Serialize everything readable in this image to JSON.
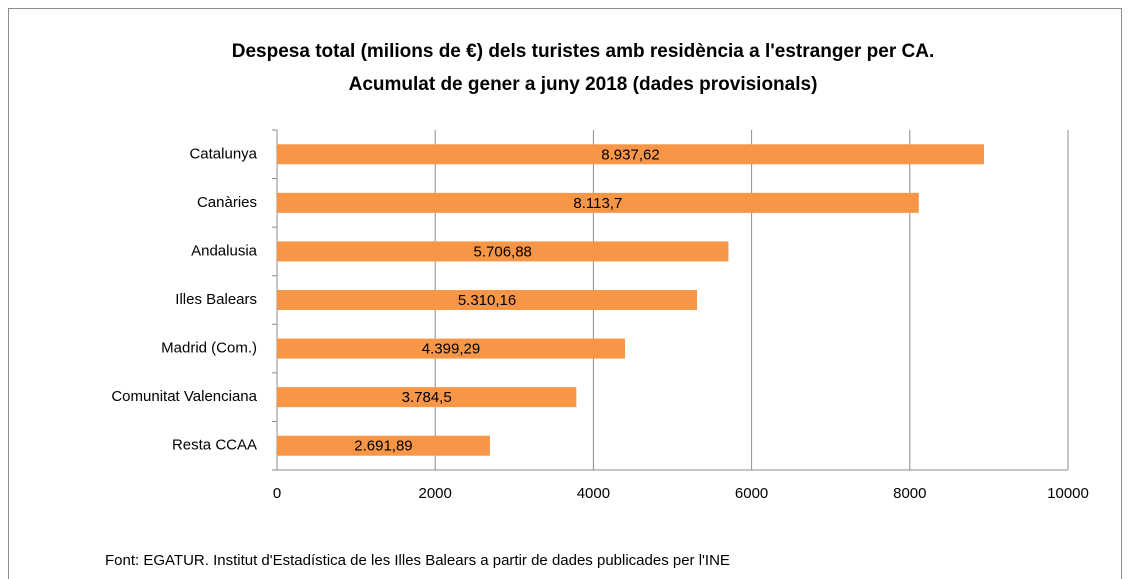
{
  "chart_data": {
    "type": "barh",
    "title": [
      "Despesa total (milions de €) dels turistes amb residència a l'estranger per CA.",
      "Acumulat de gener a juny 2018 (dades provisionals)"
    ],
    "categories": [
      "Catalunya",
      "Canàries",
      "Andalusia",
      "Illes Balears",
      "Madrid (Com.)",
      "Comunitat Valenciana",
      "Resta CCAA"
    ],
    "values": [
      8937.62,
      8113.7,
      5706.88,
      5310.16,
      4399.29,
      3784.5,
      2691.89
    ],
    "value_labels": [
      "8.937,62",
      "8.113,7",
      "5.706,88",
      "5.310,16",
      "4.399,29",
      "3.784,5",
      "2.691,89"
    ],
    "color": "#f79646",
    "xlim": [
      0,
      10000
    ],
    "xticks": [
      0,
      2000,
      4000,
      6000,
      8000,
      10000
    ],
    "grid": true,
    "source": "Font: EGATUR. Institut d'Estadística de les Illes Balears a partir de dades  publicades per l'INE"
  }
}
